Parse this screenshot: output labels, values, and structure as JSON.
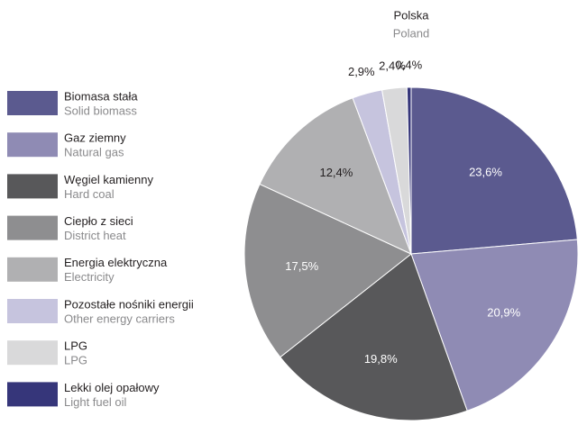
{
  "chart_data": {
    "type": "pie",
    "title": "Polska",
    "subtitle": "Poland",
    "categories": [
      "Biomasa stała",
      "Gaz ziemny",
      "Węgiel kamienny",
      "Ciepło z sieci",
      "Energia elektryczna",
      "Pozostałe nośniki energii",
      "LPG",
      "Lekki olej opałowy"
    ],
    "categories_en": [
      "Solid biomass",
      "Natural gas",
      "Hard coal",
      "District heat",
      "Electricity",
      "Other energy carriers",
      "LPG",
      "Light fuel oil"
    ],
    "values": [
      23.6,
      20.9,
      19.8,
      17.5,
      12.4,
      2.9,
      2.4,
      0.4
    ],
    "value_labels": [
      "23,6%",
      "20,9%",
      "19,8%",
      "17,5%",
      "12,4%",
      "2,9%",
      "2,4%",
      "0,4%"
    ],
    "colors": [
      "#5b5a8f",
      "#8f8bb4",
      "#58585a",
      "#8e8e90",
      "#b0b0b2",
      "#c6c4de",
      "#d9d9da",
      "#36367a"
    ],
    "legend": "left"
  }
}
